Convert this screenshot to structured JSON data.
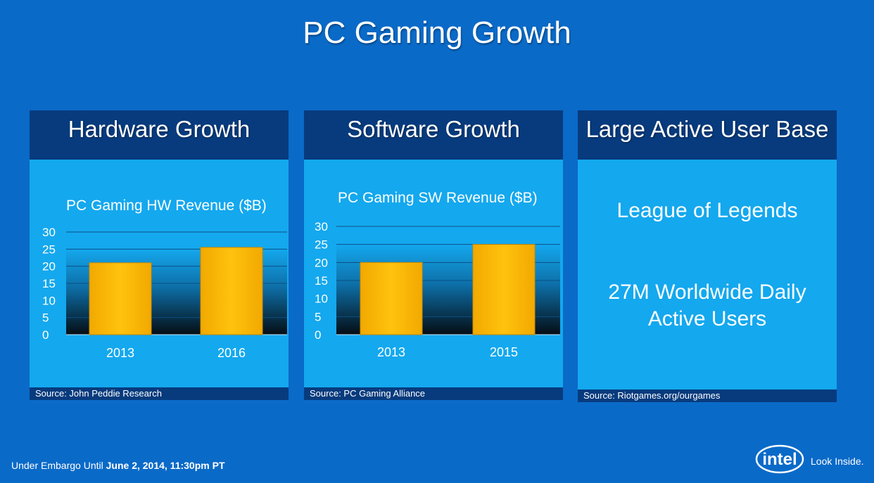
{
  "title": "PC Gaming Growth",
  "panels": [
    {
      "header": "Hardware Growth",
      "source": "Source: John Peddie Research"
    },
    {
      "header": "Software Growth",
      "source": "Source: PC Gaming Alliance"
    },
    {
      "header": "Large Active User Base",
      "source": "Source: Riotgames.org/ourgames",
      "line1": "League of Legends",
      "line2": "27M Worldwide Daily",
      "line3": "Active Users"
    }
  ],
  "chart_data": [
    {
      "type": "bar",
      "title": "PC Gaming HW Revenue ($B)",
      "categories": [
        "2013",
        "2016"
      ],
      "values": [
        21,
        25.5
      ],
      "ylim": [
        0,
        30
      ],
      "yticks": [
        "0",
        "5",
        "10",
        "15",
        "20",
        "25",
        "30"
      ],
      "grid": true,
      "bar_color": "#ffc20e"
    },
    {
      "type": "bar",
      "title": "PC Gaming SW Revenue ($B)",
      "categories": [
        "2013",
        "2015"
      ],
      "values": [
        20,
        25
      ],
      "ylim": [
        0,
        30
      ],
      "yticks": [
        "0",
        "5",
        "10",
        "15",
        "20",
        "25",
        "30"
      ],
      "grid": true,
      "bar_color": "#ffc20e"
    }
  ],
  "footer": {
    "embargo_prefix": "Under Embargo Until ",
    "embargo_date": "June 2, 2014, 11:30pm PT",
    "logo_text": "intel",
    "tagline": "Look Inside."
  },
  "colors": {
    "background": "#0a6ac8",
    "panel": "#14a8ee",
    "panel_header": "#073b7e",
    "bar": "#ffc20e"
  }
}
